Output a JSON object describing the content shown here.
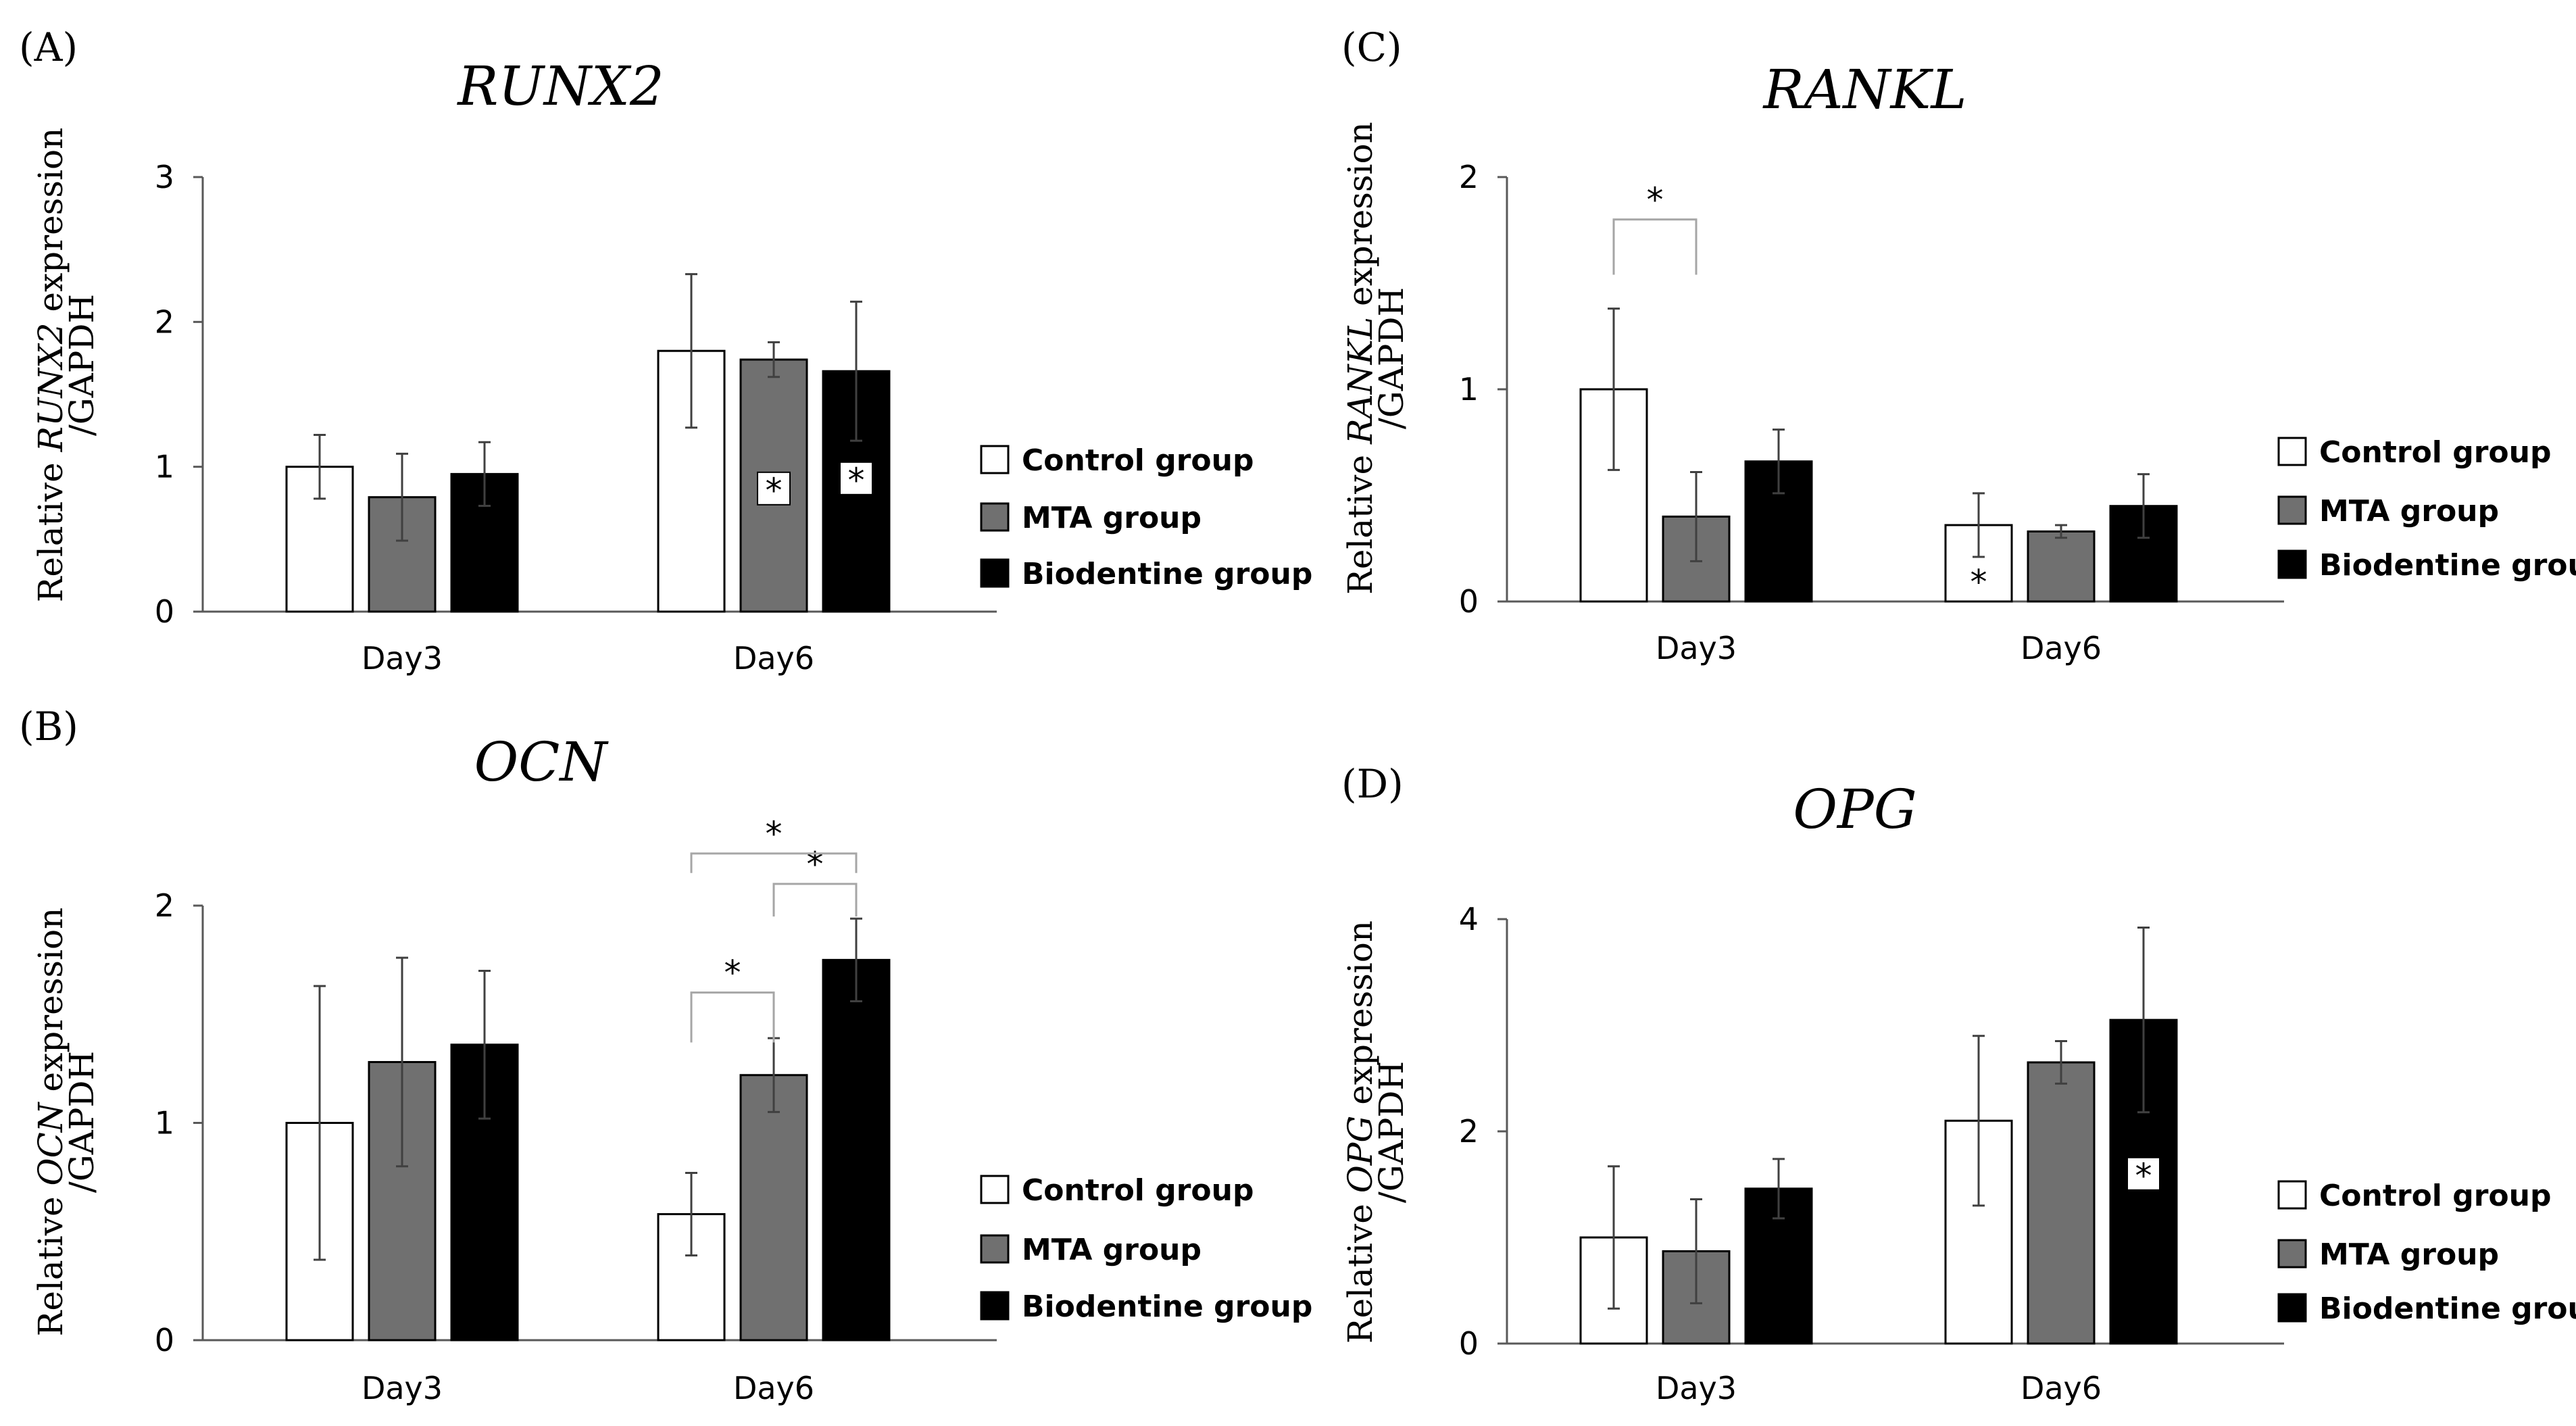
{
  "colors": {
    "control": "#ffffff",
    "mta": "#707070",
    "biodentine": "#000000",
    "axis": "#595959",
    "bracket": "#a6a6a6"
  },
  "legend": [
    "Control group",
    "MTA group",
    "Biodentine group"
  ],
  "chart_data": [
    {
      "panel": "(A)",
      "type": "bar",
      "title": "RUNX2",
      "ylabel_pre": "Relative ",
      "ylabel_italic": "RUNX2",
      "ylabel_post": " expression",
      "ylabel_line2": "/GAPDH",
      "categories": [
        "Day3",
        "Day6"
      ],
      "ylim": [
        0,
        3
      ],
      "yticks": [
        "0",
        "1",
        "2",
        "3"
      ],
      "series": [
        {
          "name": "Control group",
          "values": [
            1.0,
            1.8
          ],
          "errors": [
            0.22,
            0.53
          ]
        },
        {
          "name": "MTA group",
          "values": [
            0.79,
            1.74
          ],
          "errors": [
            0.3,
            0.12
          ]
        },
        {
          "name": "Biodentine group",
          "values": [
            0.95,
            1.66
          ],
          "errors": [
            0.22,
            0.48
          ]
        }
      ],
      "in_bar_stars": [
        {
          "series": 1,
          "category": 1,
          "value": 0.85,
          "symbol": "*"
        },
        {
          "series": 2,
          "category": 1,
          "value": 0.92,
          "symbol": "*"
        }
      ],
      "brackets": []
    },
    {
      "panel": "(B)",
      "type": "bar",
      "title": "OCN",
      "ylabel_pre": "Relative ",
      "ylabel_italic": "OCN",
      "ylabel_post": " expression",
      "ylabel_line2": "/GAPDH",
      "categories": [
        "Day3",
        "Day6"
      ],
      "ylim": [
        0,
        2
      ],
      "yticks": [
        "0",
        "1",
        "2"
      ],
      "series": [
        {
          "name": "Control group",
          "values": [
            1.0,
            0.58
          ],
          "errors": [
            0.63,
            0.19
          ]
        },
        {
          "name": "MTA group",
          "values": [
            1.28,
            1.22
          ],
          "errors": [
            0.48,
            0.17
          ]
        },
        {
          "name": "Biodentine group",
          "values": [
            1.36,
            1.75
          ],
          "errors": [
            0.34,
            0.19
          ]
        }
      ],
      "in_bar_stars": [],
      "brackets": [
        {
          "category": 1,
          "from": 0,
          "to": 1,
          "y": 1.6,
          "leg_bottom": 1.37,
          "symbol": "*"
        },
        {
          "category": 1,
          "from": 1,
          "to": 2,
          "y": 2.1,
          "leg_bottom": 1.95,
          "symbol": "*"
        },
        {
          "category": 1,
          "from": 0,
          "to": 2,
          "y": 2.24,
          "leg_bottom": 2.15,
          "symbol": "*"
        }
      ]
    },
    {
      "panel": "(C)",
      "type": "bar",
      "title": "RANKL",
      "ylabel_pre": "Relative ",
      "ylabel_italic": "RANKL",
      "ylabel_post": " expression",
      "ylabel_line2": "/GAPDH",
      "categories": [
        "Day3",
        "Day6"
      ],
      "ylim": [
        0,
        2
      ],
      "yticks": [
        "0",
        "1",
        "2"
      ],
      "series": [
        {
          "name": "Control group",
          "values": [
            1.0,
            0.36
          ],
          "errors": [
            0.38,
            0.15
          ]
        },
        {
          "name": "MTA group",
          "values": [
            0.4,
            0.33
          ],
          "errors": [
            0.21,
            0.03
          ]
        },
        {
          "name": "Biodentine group",
          "values": [
            0.66,
            0.45
          ],
          "errors": [
            0.15,
            0.15
          ]
        }
      ],
      "in_bar_stars": [
        {
          "series": 0,
          "category": 1,
          "value": 0.1,
          "symbol": "*",
          "plain": true
        }
      ],
      "brackets": [
        {
          "category": 0,
          "from": 0,
          "to": 1,
          "y": 1.8,
          "leg_bottom": 1.54,
          "symbol": "*"
        }
      ]
    },
    {
      "panel": "(D)",
      "type": "bar",
      "title": "OPG",
      "ylabel_pre": "Relative ",
      "ylabel_italic": "OPG",
      "ylabel_post": " expression",
      "ylabel_line2": "/GAPDH",
      "categories": [
        "Day3",
        "Day6"
      ],
      "ylim": [
        0,
        4
      ],
      "yticks": [
        "0",
        "2",
        "4"
      ],
      "series": [
        {
          "name": "Control group",
          "values": [
            1.0,
            2.1
          ],
          "errors": [
            0.67,
            0.8
          ]
        },
        {
          "name": "MTA group",
          "values": [
            0.87,
            2.65
          ],
          "errors": [
            0.49,
            0.2
          ]
        },
        {
          "name": "Biodentine group",
          "values": [
            1.46,
            3.05
          ],
          "errors": [
            0.28,
            0.87
          ]
        }
      ],
      "in_bar_stars": [
        {
          "series": 2,
          "category": 1,
          "value": 1.6,
          "symbol": "*"
        }
      ],
      "brackets": []
    }
  ]
}
